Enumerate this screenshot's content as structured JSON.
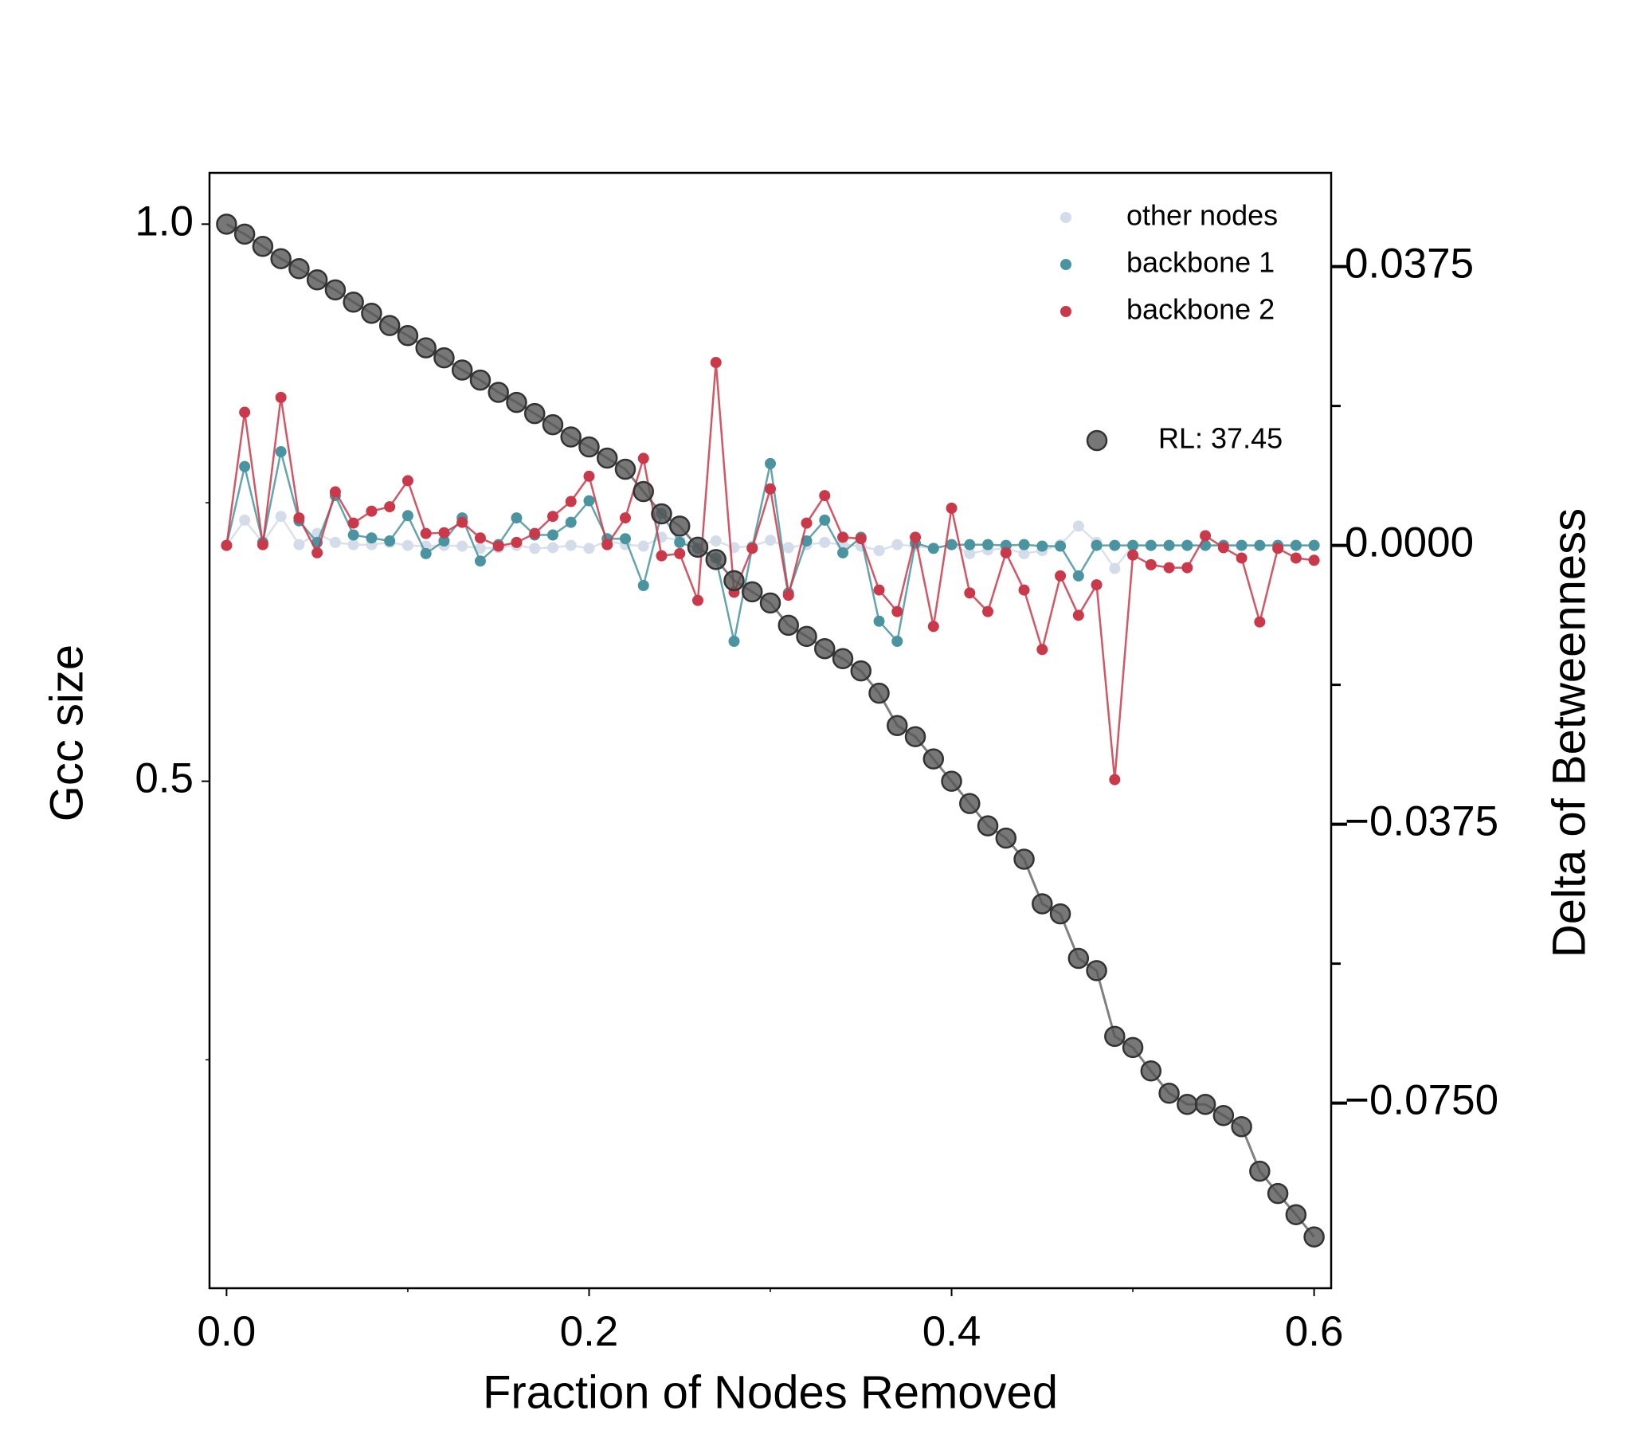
{
  "chart_data": {
    "type": "line",
    "xlabel": "Fraction of Nodes Removed",
    "ylabel": "Gcc size",
    "y2label": "Delta of Betweenness",
    "x": [
      0,
      0.01,
      0.02,
      0.03,
      0.04,
      0.05,
      0.06,
      0.07,
      0.08,
      0.09,
      0.1,
      0.11,
      0.12,
      0.13,
      0.14,
      0.15,
      0.16,
      0.17,
      0.18,
      0.19,
      0.2,
      0.21,
      0.22,
      0.23,
      0.24,
      0.25,
      0.26,
      0.27,
      0.28,
      0.29,
      0.3,
      0.31,
      0.32,
      0.33,
      0.34,
      0.35,
      0.36,
      0.37,
      0.38,
      0.39,
      0.4,
      0.41,
      0.42,
      0.43,
      0.44,
      0.45,
      0.46,
      0.47,
      0.48,
      0.49,
      0.5,
      0.51,
      0.52,
      0.53,
      0.54,
      0.55,
      0.56,
      0.57,
      0.58,
      0.59,
      0.6
    ],
    "xlim": [
      -0.0094,
      0.6094
    ],
    "xticks": [
      {
        "value": 0,
        "label": "0.0"
      },
      0.2,
      0.4,
      0.6
    ],
    "xminorticks": [
      0.1,
      0.3,
      0.5
    ],
    "ylim": [
      0.045,
      1.046
    ],
    "yticks": [
      {
        "value": 0.5,
        "label": "0.5"
      },
      {
        "value": 1,
        "label": "1.0"
      }
    ],
    "yminorticks": [
      0.25,
      0.75
    ],
    "y2lim": [
      -0.0999,
      0.0501
    ],
    "y2ticks": [
      {
        "value": -0.075,
        "label": "−0.0750"
      },
      {
        "value": -0.0375,
        "label": "−0.0375"
      },
      {
        "value": 0,
        "label": "0.0000"
      },
      0.0375
    ],
    "y2minorticks": [
      -0.05625,
      -0.01875,
      0.01875
    ],
    "legend": "upper right",
    "series": [
      {
        "name": "other nodes",
        "color": "#d3dce8",
        "axis": "y2",
        "values": [
          0,
          0.0034,
          0.0004,
          0.0039,
          0.0001,
          0.0016,
          0.0004,
          0.0001,
          0.0001,
          0.0004,
          0,
          -0.0001,
          0,
          -0.0001,
          -0.0004,
          -0.0003,
          0,
          -0.0004,
          -0.0003,
          0,
          -0.0004,
          0.0006,
          0.0001,
          -0.0001,
          0.0011,
          0.0007,
          0.0001,
          0.0006,
          -0.0003,
          -0.0001,
          0.0007,
          -0.0003,
          0.0001,
          0.0004,
          0.0001,
          -0.0001,
          -0.0007,
          0.0001,
          -0.0001,
          -0.0004,
          0.0001,
          -0.0011,
          -0.0006,
          -0.0004,
          -0.0011,
          -0.0007,
          0.0001,
          0.0026,
          0.0004,
          -0.0031,
          0,
          0,
          0,
          0,
          0,
          0,
          0,
          0,
          0,
          0,
          0
        ]
      },
      {
        "name": "backbone 1",
        "color": "#4a93a0",
        "axis": "y2",
        "values": [
          0,
          0.0106,
          0.0004,
          0.0126,
          0.0033,
          0.0004,
          0.0067,
          0.0014,
          0.001,
          0.0006,
          0.004,
          -0.0011,
          0.0006,
          0.0037,
          -0.0021,
          0.0001,
          0.0037,
          0.0014,
          0.0014,
          0.0031,
          0.006,
          0.0009,
          0.0009,
          -0.0054,
          0.0043,
          0.0004,
          -0.0004,
          -0.0017,
          -0.0129,
          -0.0003,
          0.011,
          -0.0064,
          0.0006,
          0.0034,
          -0.001,
          0.0011,
          -0.0102,
          -0.0129,
          0.0003,
          -0.0004,
          0.0001,
          0.0001,
          0.0001,
          0,
          0.0001,
          -0.0001,
          -0.0001,
          -0.0041,
          0,
          0,
          0,
          0,
          0,
          0,
          0,
          0,
          0,
          0,
          0,
          0,
          0
        ]
      },
      {
        "name": "backbone 2",
        "color": "#c9394a",
        "axis": "y2",
        "values": [
          0,
          0.0179,
          0.0001,
          0.0199,
          0.0037,
          -0.001,
          0.0072,
          0.003,
          0.0046,
          0.0052,
          0.0087,
          0.0016,
          0.0017,
          0.0031,
          0.001,
          -0.0001,
          0.0004,
          0.0016,
          0.0039,
          0.0059,
          0.0093,
          0.0001,
          0.0037,
          0.0117,
          -0.0014,
          -0.0011,
          -0.0074,
          0.0246,
          -0.0063,
          -0.0004,
          0.0076,
          -0.0067,
          0.003,
          0.0067,
          0.0011,
          0.0009,
          -0.006,
          -0.0089,
          0.0011,
          -0.0109,
          0.005,
          -0.0064,
          -0.0089,
          -0.001,
          -0.006,
          -0.014,
          -0.0041,
          -0.0094,
          -0.0053,
          -0.0315,
          -0.0013,
          -0.0026,
          -0.003,
          -0.003,
          0.0013,
          -0.0003,
          -0.0017,
          -0.0103,
          -0.0004,
          -0.0017,
          -0.002
        ]
      },
      {
        "name": "RL: 37.45",
        "color": "#555555",
        "axis": "y",
        "values": [
          1,
          0.991,
          0.98,
          0.969,
          0.96,
          0.95,
          0.941,
          0.93,
          0.92,
          0.909,
          0.9,
          0.889,
          0.88,
          0.869,
          0.86,
          0.849,
          0.84,
          0.83,
          0.82,
          0.809,
          0.8,
          0.79,
          0.78,
          0.76,
          0.74,
          0.729,
          0.71,
          0.699,
          0.68,
          0.67,
          0.66,
          0.64,
          0.63,
          0.619,
          0.61,
          0.599,
          0.579,
          0.55,
          0.54,
          0.52,
          0.5,
          0.48,
          0.46,
          0.449,
          0.43,
          0.39,
          0.381,
          0.341,
          0.33,
          0.271,
          0.261,
          0.24,
          0.22,
          0.21,
          0.21,
          0.2,
          0.19,
          0.15,
          0.13,
          0.111,
          0.091
        ]
      }
    ]
  }
}
